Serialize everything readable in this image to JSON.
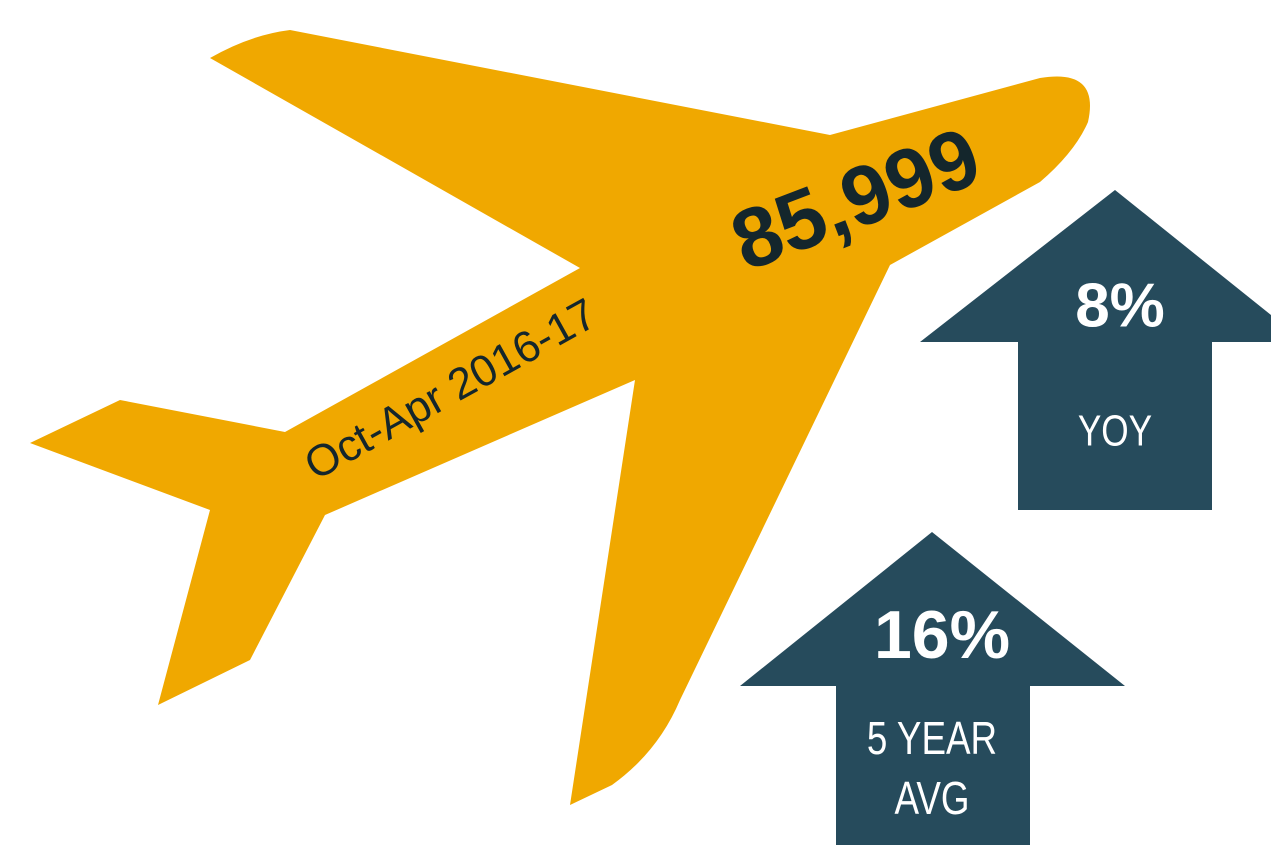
{
  "plane": {
    "period": "Oct-Apr 2016-17",
    "total": "85,999"
  },
  "arrows": [
    {
      "value": "8%",
      "label_lines": [
        "YOY"
      ]
    },
    {
      "value": "16%",
      "label_lines": [
        "5 YEAR",
        "AVG"
      ]
    }
  ]
}
